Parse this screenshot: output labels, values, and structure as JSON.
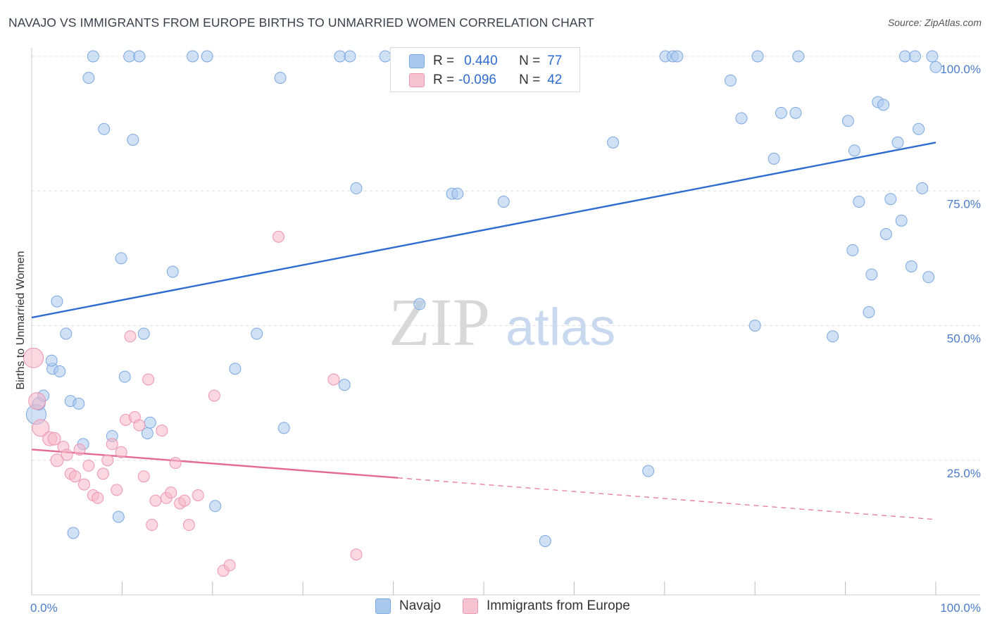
{
  "header": {
    "title": "NAVAJO VS IMMIGRANTS FROM EUROPE BIRTHS TO UNMARRIED WOMEN CORRELATION CHART",
    "source": "Source: ZipAtlas.com"
  },
  "legend": {
    "rows": [
      {
        "r_label": "R =",
        "r_value": "0.440",
        "n_label": "N =",
        "n_value": "77"
      },
      {
        "r_label": "R =",
        "r_value": "-0.096",
        "n_label": "N =",
        "n_value": "42"
      }
    ]
  },
  "bottom_legend": {
    "navajo": "Navajo",
    "europe": "Immigrants from Europe"
  },
  "watermark": {
    "zip": "ZIP",
    "atlas": "atlas"
  },
  "colors": {
    "navajo_fill": "#a9c8ee",
    "navajo_stroke": "#7aa8e2",
    "navajo_line": "#2f6ccf",
    "europe_fill": "#f6b7c9",
    "europe_stroke": "#ee94b0",
    "europe_line": "#e46a93",
    "tick_text": "#4a7cc9",
    "grid": "#dddddd"
  },
  "chart_data": {
    "type": "scatter",
    "ylabel": "Births to Unmarried Women",
    "xlim": [
      0,
      100
    ],
    "ylim": [
      0,
      100
    ],
    "x_tick_labels": [
      {
        "value": 0,
        "label": "0.0%"
      },
      {
        "value": 100,
        "label": "100.0%"
      }
    ],
    "y_tick_labels": [
      {
        "value": 25,
        "label": "25.0%"
      },
      {
        "value": 50,
        "label": "50.0%"
      },
      {
        "value": 75,
        "label": "75.0%"
      },
      {
        "value": 100,
        "label": "100.0%"
      }
    ],
    "series": [
      {
        "name": "Navajo",
        "r": 0.44,
        "n": 77,
        "trend": {
          "x": [
            0,
            100
          ],
          "y": [
            51.5,
            84.0
          ],
          "dashed_from": null
        },
        "points": [
          [
            0.5,
            33.5,
            14
          ],
          [
            0.8,
            35.5,
            9
          ],
          [
            1.3,
            37.0,
            8
          ],
          [
            2.8,
            54.5,
            8
          ],
          [
            3.8,
            48.5,
            8
          ],
          [
            2.3,
            42.0,
            8
          ],
          [
            3.1,
            41.5,
            8
          ],
          [
            2.2,
            43.5,
            8
          ],
          [
            4.3,
            36.0,
            8
          ],
          [
            5.2,
            35.5,
            8
          ],
          [
            5.7,
            28.0,
            8
          ],
          [
            4.6,
            11.5,
            8
          ],
          [
            6.3,
            96.0,
            8
          ],
          [
            6.8,
            100.0,
            8
          ],
          [
            8.0,
            86.5,
            8
          ],
          [
            8.9,
            29.5,
            8
          ],
          [
            9.6,
            14.5,
            8
          ],
          [
            9.9,
            62.5,
            8
          ],
          [
            10.3,
            40.5,
            8
          ],
          [
            11.2,
            84.5,
            8
          ],
          [
            10.8,
            100.0,
            8
          ],
          [
            11.9,
            100.0,
            8
          ],
          [
            12.4,
            48.5,
            8
          ],
          [
            12.8,
            30.0,
            8
          ],
          [
            13.1,
            32.0,
            8
          ],
          [
            15.6,
            60.0,
            8
          ],
          [
            17.8,
            100.0,
            8
          ],
          [
            19.4,
            100.0,
            8
          ],
          [
            20.3,
            16.5,
            8
          ],
          [
            22.5,
            42.0,
            8
          ],
          [
            24.9,
            48.5,
            8
          ],
          [
            27.5,
            96.0,
            8
          ],
          [
            27.9,
            31.0,
            8
          ],
          [
            34.6,
            39.0,
            8
          ],
          [
            34.1,
            100.0,
            8
          ],
          [
            35.2,
            100.0,
            8
          ],
          [
            35.9,
            75.5,
            8
          ],
          [
            39.1,
            100.0,
            8
          ],
          [
            42.9,
            54.0,
            8
          ],
          [
            46.5,
            74.5,
            8
          ],
          [
            47.1,
            74.5,
            8
          ],
          [
            52.2,
            73.0,
            8
          ],
          [
            56.8,
            10.0,
            8
          ],
          [
            64.3,
            84.0,
            8
          ],
          [
            68.2,
            23.0,
            8
          ],
          [
            70.1,
            100.0,
            8
          ],
          [
            70.9,
            100.0,
            8
          ],
          [
            71.4,
            100.0,
            8
          ],
          [
            77.3,
            95.5,
            8
          ],
          [
            78.5,
            88.5,
            8
          ],
          [
            80.0,
            50.0,
            8
          ],
          [
            80.3,
            100.0,
            8
          ],
          [
            82.1,
            81.0,
            8
          ],
          [
            82.9,
            89.5,
            8
          ],
          [
            84.5,
            89.5,
            8
          ],
          [
            84.8,
            100.0,
            8
          ],
          [
            88.6,
            48.0,
            8
          ],
          [
            90.3,
            88.0,
            8
          ],
          [
            91.0,
            82.5,
            8
          ],
          [
            91.5,
            73.0,
            8
          ],
          [
            90.8,
            64.0,
            8
          ],
          [
            92.6,
            52.5,
            8
          ],
          [
            92.9,
            59.5,
            8
          ],
          [
            93.6,
            91.5,
            8
          ],
          [
            94.2,
            91.0,
            8
          ],
          [
            94.5,
            67.0,
            8
          ],
          [
            95.0,
            73.5,
            8
          ],
          [
            95.8,
            84.0,
            8
          ],
          [
            96.2,
            69.5,
            8
          ],
          [
            96.6,
            100.0,
            8
          ],
          [
            97.3,
            61.0,
            8
          ],
          [
            97.7,
            100.0,
            8
          ],
          [
            98.1,
            86.5,
            8
          ],
          [
            98.5,
            75.5,
            8
          ],
          [
            99.2,
            59.0,
            8
          ],
          [
            99.6,
            100.0,
            8
          ],
          [
            100.0,
            98.0,
            8
          ]
        ]
      },
      {
        "name": "Immigrants from Europe",
        "r": -0.096,
        "n": 42,
        "trend": {
          "x": [
            0,
            100
          ],
          "y": [
            27.0,
            14.0
          ],
          "dashed_from": 40.5
        },
        "points": [
          [
            0.2,
            44.0,
            14
          ],
          [
            0.6,
            36.0,
            12
          ],
          [
            1.0,
            31.0,
            12
          ],
          [
            2.0,
            29.0,
            10
          ],
          [
            2.5,
            29.0,
            9
          ],
          [
            2.8,
            25.0,
            9
          ],
          [
            3.5,
            27.5,
            8
          ],
          [
            3.9,
            26.0,
            8
          ],
          [
            4.3,
            22.5,
            8
          ],
          [
            4.8,
            22.0,
            8
          ],
          [
            5.3,
            27.0,
            8
          ],
          [
            5.8,
            20.5,
            8
          ],
          [
            6.3,
            24.0,
            8
          ],
          [
            6.8,
            18.5,
            8
          ],
          [
            7.3,
            18.0,
            8
          ],
          [
            7.9,
            22.5,
            8
          ],
          [
            8.4,
            25.0,
            8
          ],
          [
            8.9,
            28.0,
            8
          ],
          [
            9.4,
            19.5,
            8
          ],
          [
            9.9,
            26.5,
            8
          ],
          [
            10.4,
            32.5,
            8
          ],
          [
            10.9,
            48.0,
            8
          ],
          [
            11.4,
            33.0,
            8
          ],
          [
            11.9,
            31.5,
            8
          ],
          [
            12.4,
            22.0,
            8
          ],
          [
            12.9,
            40.0,
            8
          ],
          [
            13.3,
            13.0,
            8
          ],
          [
            13.7,
            17.5,
            8
          ],
          [
            14.4,
            30.5,
            8
          ],
          [
            14.9,
            18.0,
            8
          ],
          [
            15.4,
            19.0,
            8
          ],
          [
            15.9,
            24.5,
            8
          ],
          [
            16.4,
            17.0,
            8
          ],
          [
            16.9,
            17.5,
            8
          ],
          [
            17.4,
            13.0,
            8
          ],
          [
            18.4,
            18.5,
            8
          ],
          [
            20.2,
            37.0,
            8
          ],
          [
            21.2,
            4.5,
            8
          ],
          [
            21.9,
            5.5,
            8
          ],
          [
            27.3,
            66.5,
            8
          ],
          [
            33.4,
            40.0,
            8
          ],
          [
            35.9,
            7.5,
            8
          ]
        ]
      }
    ],
    "grid": true,
    "legend_position": "top-center"
  }
}
